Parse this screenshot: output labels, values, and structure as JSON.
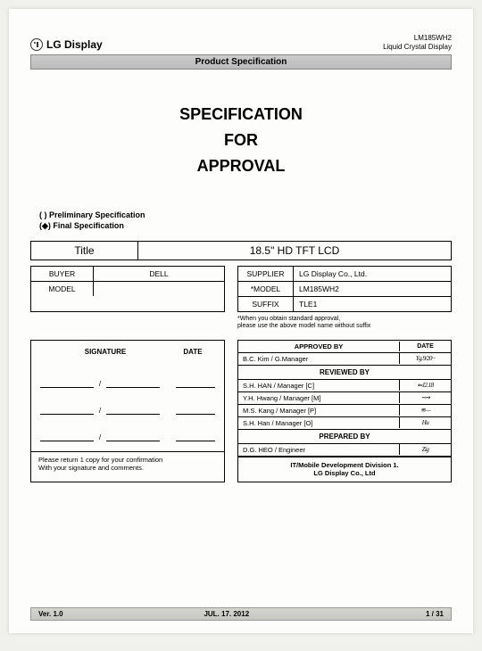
{
  "header": {
    "brand": "LG Display",
    "model_code": "LM185WH2",
    "product_line": "Liquid Crystal Display",
    "bar_label": "Product Specification"
  },
  "title": {
    "line1": "SPECIFICATION",
    "line2": "FOR",
    "line3": "APPROVAL"
  },
  "spec_type": {
    "preliminary": "(   ) Preliminary Specification",
    "final": "(◆) Final Specification"
  },
  "title_bar": {
    "label": "Title",
    "value": "18.5\" HD TFT LCD"
  },
  "buyer_table": {
    "rows": [
      {
        "label": "BUYER",
        "value": "DELL"
      },
      {
        "label": "MODEL",
        "value": ""
      }
    ]
  },
  "supplier_table": {
    "rows": [
      {
        "label": "SUPPLIER",
        "value": "LG Display Co., Ltd."
      },
      {
        "label": "*MODEL",
        "value": "LM185WH2"
      },
      {
        "label": "SUFFIX",
        "value": "TLE1"
      }
    ]
  },
  "footnote": "*When you obtain standard approval,\n please use the above model name without suffix",
  "sig_left": {
    "head_sig": "SIGNATURE",
    "head_date": "DATE",
    "footer": "Please return 1 copy for your confirmation\nWith your signature and comments."
  },
  "sig_right": {
    "approved_label": "APPROVED BY",
    "approved_date_label": "DATE",
    "approved_by": "B.C. Kim /  G.Manager",
    "approved_sig": "Yg.9/20~",
    "reviewed_label": "REVIEWED BY",
    "reviewers": [
      {
        "name": "S.H. HAN / Manager [C]",
        "sig": "⇐J2.18"
      },
      {
        "name": "Y.H. Hwang  / Manager [M]",
        "sig": "⟿"
      },
      {
        "name": "M.S. Kang / Manager  [P]",
        "sig": "≋—"
      },
      {
        "name": "S.H. Han / Manager  [O]",
        "sig": "Hu"
      }
    ],
    "prepared_label": "PREPARED BY",
    "prepared_by": "D.G. HEO /  Engineer",
    "prepared_sig": "Zig",
    "footer_line1": "IT/Mobile Development Division 1.",
    "footer_line2": "LG Display Co., Ltd"
  },
  "page_footer": {
    "version": "Ver. 1.0",
    "date": "JUL. 17. 2012",
    "page": "1 / 31"
  }
}
